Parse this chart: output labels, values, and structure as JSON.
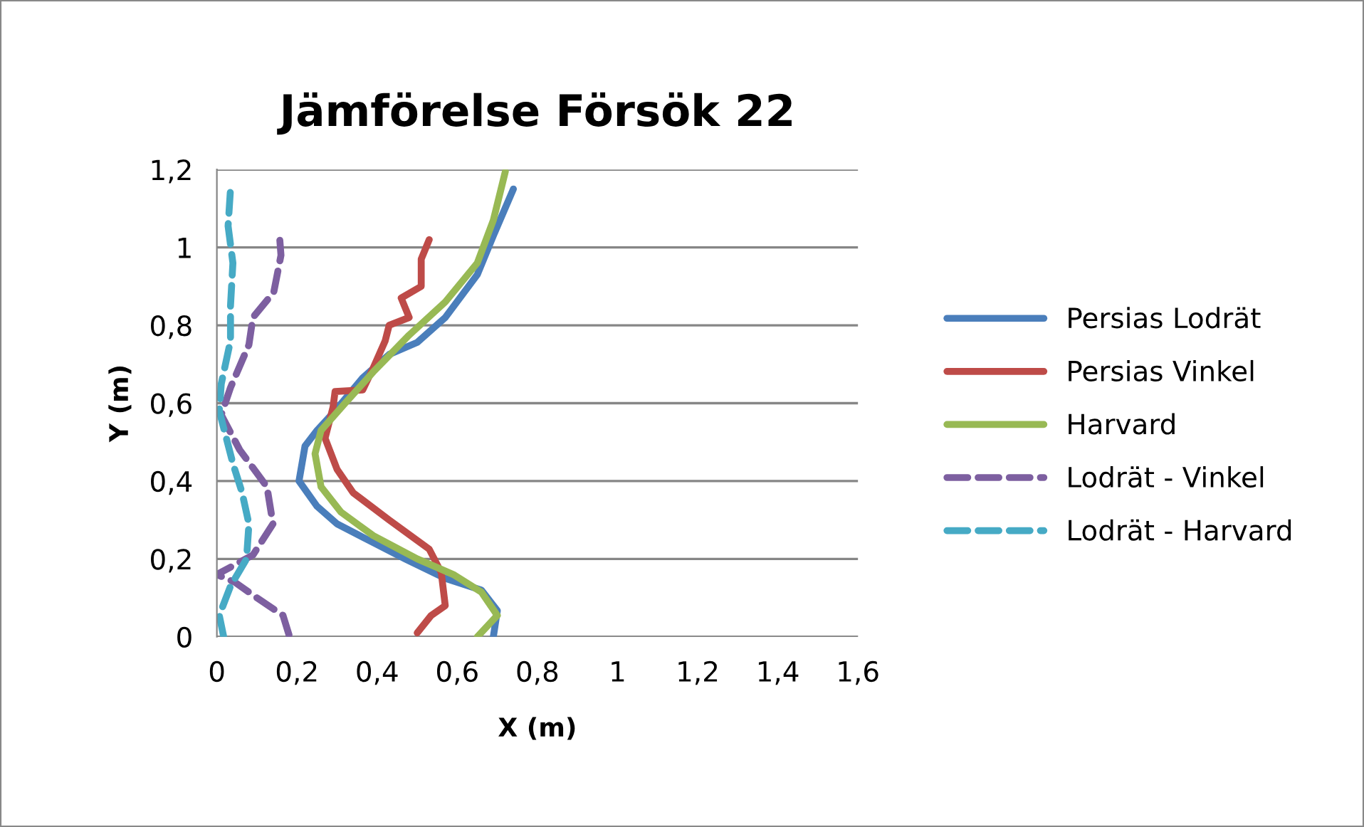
{
  "chart_data": {
    "type": "line",
    "title": "Jämförelse Försök 22",
    "xlabel": "X (m)",
    "ylabel": "Y (m)",
    "xlim": [
      0,
      1.6
    ],
    "ylim": [
      0,
      1.2
    ],
    "xticks": [
      0,
      {
        "value": 0.2,
        "label": "0,2"
      },
      {
        "value": 0.4,
        "label": "0,4"
      },
      {
        "value": 0.6,
        "label": "0,6"
      },
      {
        "value": 0.8,
        "label": "0,8"
      },
      1,
      {
        "value": 1.2,
        "label": "1,2"
      },
      {
        "value": 1.4,
        "label": "1,4"
      },
      {
        "value": 1.6,
        "label": "1,6"
      }
    ],
    "yticks": [
      0,
      {
        "value": 0.2,
        "label": "0,2"
      },
      {
        "value": 0.4,
        "label": "0,4"
      },
      {
        "value": 0.6,
        "label": "0,6"
      },
      {
        "value": 0.8,
        "label": "0,8"
      },
      1,
      {
        "value": 1.2,
        "label": "1,2"
      }
    ],
    "grid": "y",
    "legend": "right",
    "marker": "none",
    "series": [
      {
        "name": "Persias Lodrät",
        "color": "#4a7ebb",
        "line_style": "solid",
        "x": [
          0.69,
          0.7,
          0.66,
          0.57,
          0.47,
          0.375,
          0.3,
          0.25,
          0.205,
          0.22,
          0.25,
          0.295,
          0.364,
          0.43,
          0.5,
          0.57,
          0.65,
          0.69,
          0.74
        ],
        "values": [
          0,
          0.067,
          0.12,
          0.15,
          0.2,
          0.25,
          0.29,
          0.335,
          0.4,
          0.49,
          0.53,
          0.58,
          0.665,
          0.725,
          0.756,
          0.82,
          0.93,
          1.03,
          1.15
        ]
      },
      {
        "name": "Persias Vinkel",
        "color": "#be4b48",
        "line_style": "solid",
        "x": [
          0.5,
          0.535,
          0.57,
          0.56,
          0.53,
          0.43,
          0.34,
          0.3,
          0.27,
          0.29,
          0.295,
          0.364,
          0.39,
          0.42,
          0.43,
          0.48,
          0.46,
          0.51,
          0.51,
          0.53
        ],
        "values": [
          0.01,
          0.055,
          0.08,
          0.165,
          0.225,
          0.3,
          0.37,
          0.43,
          0.51,
          0.59,
          0.63,
          0.634,
          0.69,
          0.76,
          0.8,
          0.82,
          0.87,
          0.9,
          0.97,
          1.02
        ]
      },
      {
        "name": "Harvard",
        "color": "#98b954",
        "line_style": "solid",
        "x": [
          0.65,
          0.7,
          0.66,
          0.59,
          0.5,
          0.39,
          0.31,
          0.26,
          0.245,
          0.26,
          0.32,
          0.39,
          0.48,
          0.57,
          0.65,
          0.69,
          0.72
        ],
        "values": [
          0,
          0.055,
          0.115,
          0.16,
          0.2,
          0.26,
          0.32,
          0.385,
          0.47,
          0.53,
          0.6,
          0.68,
          0.775,
          0.86,
          0.96,
          1.07,
          1.195
        ]
      },
      {
        "name": "Lodrät - Vinkel",
        "color": "#7d5fa0",
        "line_style": "dashed",
        "x": [
          0.18,
          0.165,
          0.1,
          0.045,
          0,
          0.09,
          0.14,
          0.125,
          0.057,
          0.011,
          0.034,
          0.08,
          0.09,
          0.142,
          0.16,
          0.157
        ],
        "values": [
          0.005,
          0.055,
          0.1,
          0.14,
          0.16,
          0.21,
          0.29,
          0.385,
          0.48,
          0.57,
          0.64,
          0.75,
          0.82,
          0.885,
          0.98,
          1.02
        ]
      },
      {
        "name": "Lodrät - Harvard",
        "color": "#46aac5",
        "line_style": "dashed",
        "x": [
          0.017,
          0.006,
          0.034,
          0.074,
          0.08,
          0.063,
          0.04,
          0.006,
          0.011,
          0.034,
          0.034,
          0.04,
          0.028,
          0.034
        ],
        "values": [
          0,
          0.055,
          0.13,
          0.2,
          0.29,
          0.37,
          0.445,
          0.58,
          0.65,
          0.76,
          0.85,
          0.96,
          1.055,
          1.15
        ]
      }
    ]
  }
}
